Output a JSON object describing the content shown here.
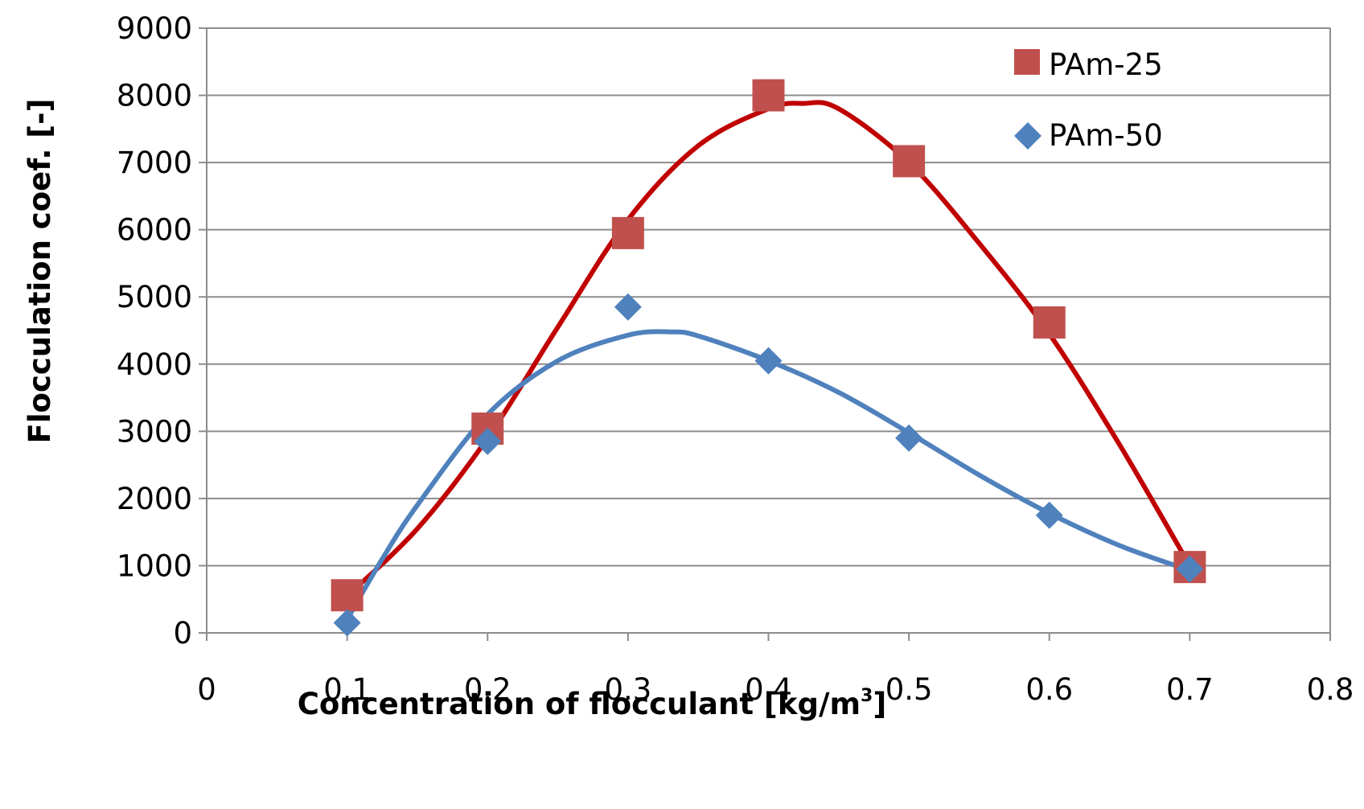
{
  "chart_data": {
    "type": "scatter",
    "title": "",
    "xlabel": "Concentration of flocculant [kg/m",
    "xlabel_sup": "3",
    "xlabel_end": "]",
    "ylabel": "Flocculation coef. [-]",
    "xlim": [
      0,
      0.8
    ],
    "ylim": [
      0,
      9000
    ],
    "xticks": [
      "0",
      "0.1",
      "0.2",
      "0.3",
      "0.4",
      "0.5",
      "0.6",
      "0.7",
      "0.8"
    ],
    "yticks": [
      "0",
      "1000",
      "2000",
      "3000",
      "4000",
      "5000",
      "6000",
      "7000",
      "8000",
      "9000"
    ],
    "grid": "horizontal",
    "legend_position": "top-right",
    "series": [
      {
        "name": "PAm-25",
        "marker": "square",
        "color": "#C0504D",
        "line_color": "#C00000",
        "x": [
          0.1,
          0.2,
          0.3,
          0.4,
          0.5,
          0.6,
          0.7
        ],
        "values": [
          560,
          3040,
          5950,
          8000,
          7020,
          4620,
          980
        ],
        "trend": [
          [
            0.1,
            550
          ],
          [
            0.15,
            1550
          ],
          [
            0.2,
            2900
          ],
          [
            0.25,
            4550
          ],
          [
            0.3,
            6150
          ],
          [
            0.35,
            7250
          ],
          [
            0.4,
            7800
          ],
          [
            0.425,
            7880
          ],
          [
            0.45,
            7800
          ],
          [
            0.5,
            7000
          ],
          [
            0.55,
            5800
          ],
          [
            0.6,
            4450
          ],
          [
            0.65,
            2800
          ],
          [
            0.7,
            1000
          ]
        ]
      },
      {
        "name": "PAm-50",
        "marker": "diamond",
        "color": "#4F81BD",
        "line_color": "#4F81BD",
        "x": [
          0.1,
          0.2,
          0.3,
          0.4,
          0.5,
          0.6,
          0.7
        ],
        "values": [
          150,
          2850,
          4850,
          4050,
          2900,
          1750,
          950
        ],
        "trend": [
          [
            0.1,
            200
          ],
          [
            0.125,
            1100
          ],
          [
            0.15,
            1900
          ],
          [
            0.2,
            3250
          ],
          [
            0.25,
            4050
          ],
          [
            0.3,
            4430
          ],
          [
            0.33,
            4480
          ],
          [
            0.35,
            4420
          ],
          [
            0.4,
            4050
          ],
          [
            0.45,
            3580
          ],
          [
            0.5,
            2980
          ],
          [
            0.55,
            2350
          ],
          [
            0.6,
            1780
          ],
          [
            0.65,
            1300
          ],
          [
            0.7,
            930
          ]
        ]
      }
    ]
  }
}
